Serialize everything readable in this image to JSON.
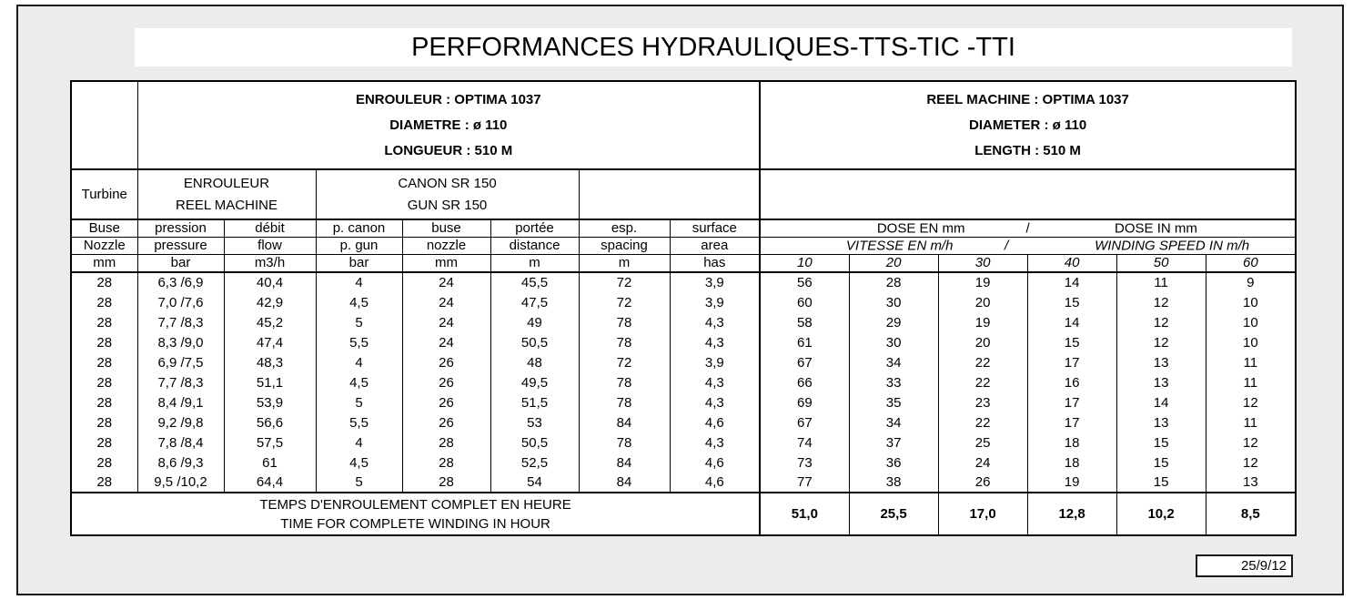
{
  "title": "PERFORMANCES HYDRAULIQUES-TTS-TIC -TTI",
  "date": "25/9/12",
  "machine_fr": [
    "ENROULEUR : OPTIMA 1037",
    "DIAMETRE : ø 110",
    "LONGUEUR : 510 M"
  ],
  "machine_en": [
    "REEL MACHINE : OPTIMA 1037",
    "DIAMETER : ø 110",
    "LENGTH : 510 M"
  ],
  "turbine_label": "Turbine",
  "group_reel": [
    "ENROULEUR",
    "REEL MACHINE"
  ],
  "group_gun": [
    "CANON SR 150",
    "GUN SR 150"
  ],
  "headers_fr": [
    "Buse",
    "pression",
    "débit",
    "p. canon",
    "buse",
    "portée",
    "esp.",
    "surface"
  ],
  "headers_en": [
    "Nozzle",
    "pressure",
    "flow",
    "p. gun",
    "nozzle",
    "distance",
    "spacing",
    "area"
  ],
  "units": [
    "mm",
    "bar",
    "m3/h",
    "bar",
    "mm",
    "m",
    "m",
    "has"
  ],
  "dose": {
    "fr": "DOSE EN mm",
    "sep": "/",
    "en": "DOSE IN mm"
  },
  "speed": {
    "fr": "VITESSE EN m/h",
    "sep": "/",
    "en": "WINDING SPEED IN m/h"
  },
  "dose_values": [
    "10",
    "20",
    "30",
    "40",
    "50",
    "60"
  ],
  "rows": [
    [
      "28",
      "6,3 /6,9",
      "40,4",
      "4",
      "24",
      "45,5",
      "72",
      "3,9",
      "56",
      "28",
      "19",
      "14",
      "11",
      "9"
    ],
    [
      "28",
      "7,0 /7,6",
      "42,9",
      "4,5",
      "24",
      "47,5",
      "72",
      "3,9",
      "60",
      "30",
      "20",
      "15",
      "12",
      "10"
    ],
    [
      "28",
      "7,7 /8,3",
      "45,2",
      "5",
      "24",
      "49",
      "78",
      "4,3",
      "58",
      "29",
      "19",
      "14",
      "12",
      "10"
    ],
    [
      "28",
      "8,3 /9,0",
      "47,4",
      "5,5",
      "24",
      "50,5",
      "78",
      "4,3",
      "61",
      "30",
      "20",
      "15",
      "12",
      "10"
    ],
    [
      "28",
      "6,9 /7,5",
      "48,3",
      "4",
      "26",
      "48",
      "72",
      "3,9",
      "67",
      "34",
      "22",
      "17",
      "13",
      "11"
    ],
    [
      "28",
      "7,7 /8,3",
      "51,1",
      "4,5",
      "26",
      "49,5",
      "78",
      "4,3",
      "66",
      "33",
      "22",
      "16",
      "13",
      "11"
    ],
    [
      "28",
      "8,4 /9,1",
      "53,9",
      "5",
      "26",
      "51,5",
      "78",
      "4,3",
      "69",
      "35",
      "23",
      "17",
      "14",
      "12"
    ],
    [
      "28",
      "9,2 /9,8",
      "56,6",
      "5,5",
      "26",
      "53",
      "84",
      "4,6",
      "67",
      "34",
      "22",
      "17",
      "13",
      "11"
    ],
    [
      "28",
      "7,8 /8,4",
      "57,5",
      "4",
      "28",
      "50,5",
      "78",
      "4,3",
      "74",
      "37",
      "25",
      "18",
      "15",
      "12"
    ],
    [
      "28",
      "8,6 /9,3",
      "61",
      "4,5",
      "28",
      "52,5",
      "84",
      "4,6",
      "73",
      "36",
      "24",
      "18",
      "15",
      "12"
    ],
    [
      "28",
      "9,5 /10,2",
      "64,4",
      "5",
      "28",
      "54",
      "84",
      "4,6",
      "77",
      "38",
      "26",
      "19",
      "15",
      "13"
    ]
  ],
  "footer": {
    "fr": "TEMPS D'ENROULEMENT COMPLET EN HEURE",
    "en": "TIME FOR COMPLETE WINDING IN HOUR",
    "values": [
      "51,0",
      "25,5",
      "17,0",
      "12,8",
      "10,2",
      "8,5"
    ]
  }
}
